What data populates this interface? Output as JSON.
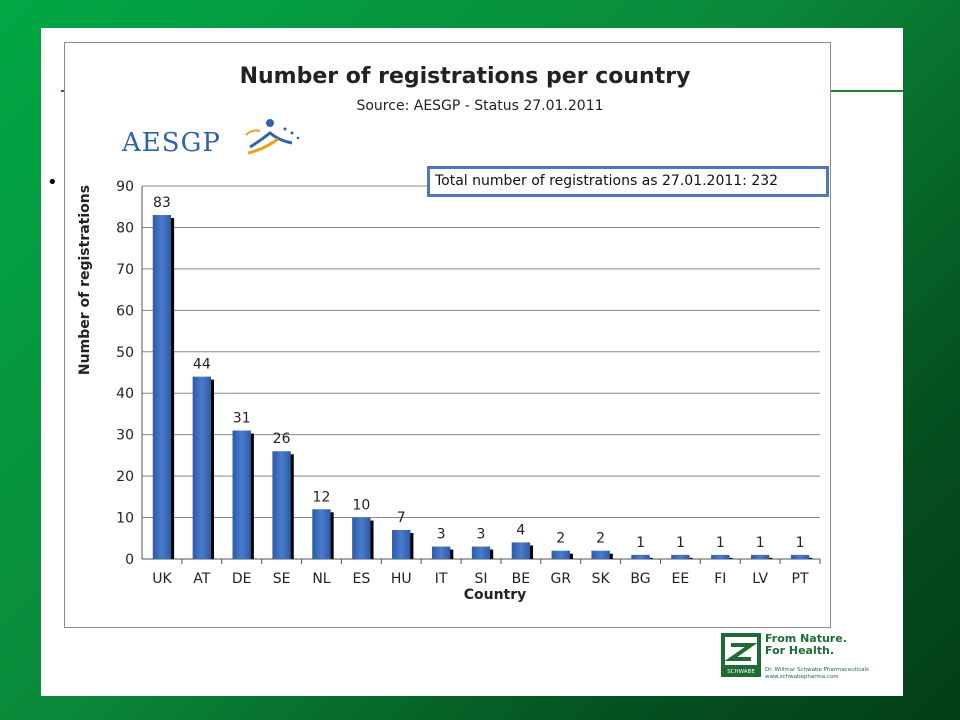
{
  "colors": {
    "bar": "#4a7ccc",
    "bar_dark": "#2c5aa6",
    "bar_shadow": "#000000",
    "grid": "#888888",
    "box_border": "#5377b5",
    "green": "#1d6b35"
  },
  "aesgp_logo_text": "AESGP",
  "total_box_text": "Total number of registrations as 27.01.2011: 232",
  "schwabe": {
    "slogan_line1": "From Nature.",
    "slogan_line2": "For Health.",
    "badge_text": "SCHWABE",
    "company_line1": "Dr. Willmar Schwabe Pharmaceuticals",
    "company_line2": "www.schwabepharma.com"
  },
  "chart_data": {
    "type": "bar",
    "title": "Number of registrations per country",
    "subtitle": "Source: AESGP - Status 27.01.2011",
    "xlabel": "Country",
    "ylabel": "Number of registrations",
    "ylim": [
      0,
      90
    ],
    "yticks": [
      0,
      10,
      20,
      30,
      40,
      50,
      60,
      70,
      80,
      90
    ],
    "grid": true,
    "categories": [
      "UK",
      "AT",
      "DE",
      "SE",
      "NL",
      "ES",
      "HU",
      "IT",
      "SI",
      "BE",
      "GR",
      "SK",
      "BG",
      "EE",
      "FI",
      "LV",
      "PT"
    ],
    "values": [
      83,
      44,
      31,
      26,
      12,
      10,
      7,
      3,
      3,
      4,
      2,
      2,
      1,
      1,
      1,
      1,
      1
    ]
  }
}
